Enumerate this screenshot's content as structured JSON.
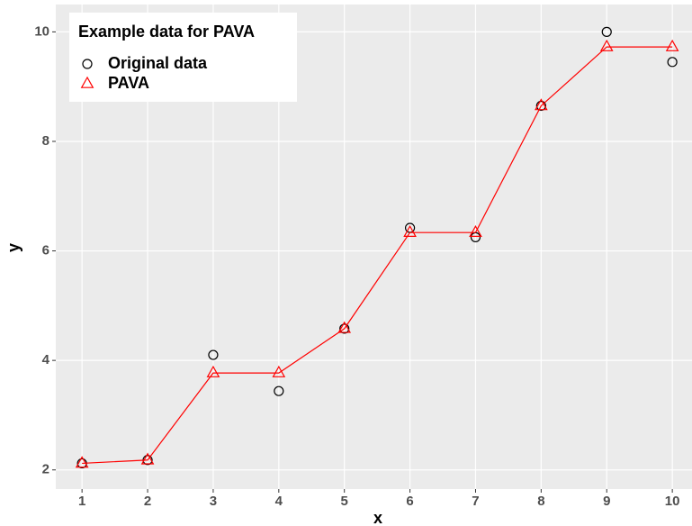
{
  "chart_data": {
    "type": "line",
    "xlabel": "x",
    "ylabel": "y",
    "legend_title": "Example data for PAVA",
    "legend_position": "top-left",
    "grid": true,
    "x": [
      1,
      2,
      3,
      4,
      5,
      6,
      7,
      8,
      9,
      10
    ],
    "series": [
      {
        "name": "Original data",
        "color": "#000000",
        "marker": "circle",
        "line": false,
        "values": [
          2.12,
          2.18,
          4.1,
          3.44,
          4.58,
          6.42,
          6.25,
          8.65,
          10.0,
          9.45
        ]
      },
      {
        "name": "PAVA",
        "color": "#ff0000",
        "marker": "triangle",
        "line": true,
        "values": [
          2.12,
          2.18,
          3.77,
          3.77,
          4.58,
          6.335,
          6.335,
          8.65,
          9.725,
          9.725
        ]
      }
    ],
    "xlim": [
      0.6,
      10.3
    ],
    "xticks": [
      1,
      2,
      3,
      4,
      5,
      6,
      7,
      8,
      9,
      10
    ],
    "ylim": [
      1.65,
      10.5
    ],
    "yticks": [
      2,
      4,
      6,
      8,
      10
    ]
  }
}
